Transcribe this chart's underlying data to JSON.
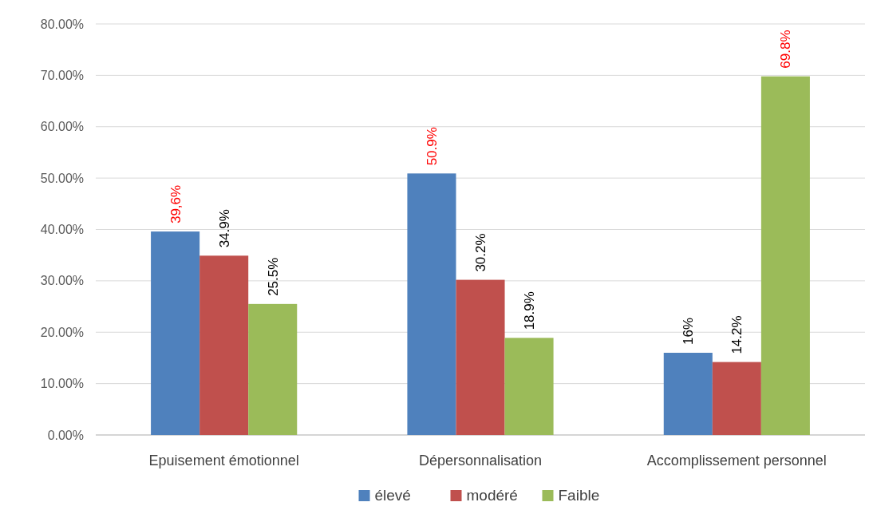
{
  "chart_data": {
    "type": "bar",
    "categories": [
      "Epuisement émotionnel",
      "Dépersonnalisation",
      "Accomplissement personnel"
    ],
    "series": [
      {
        "name": "élevé",
        "color": "#4f81bd",
        "values": [
          39.6,
          50.9,
          16
        ],
        "value_labels": [
          "39,6%",
          "50.9%",
          "16%"
        ]
      },
      {
        "name": "modéré",
        "color": "#c0504d",
        "values": [
          34.9,
          30.2,
          14.2
        ],
        "value_labels": [
          "34.9%",
          "30.2%",
          "14.2%"
        ]
      },
      {
        "name": "Faible",
        "color": "#9bbb59",
        "values": [
          25.5,
          18.9,
          69.8
        ],
        "value_labels": [
          "25.5%",
          "18.9%",
          "69.8%"
        ]
      }
    ],
    "ylim": [
      0,
      80
    ],
    "yticks": [
      {
        "value": 0,
        "label": "0.00%"
      },
      {
        "value": 10,
        "label": "10.00%"
      },
      {
        "value": 20,
        "label": "20.00%"
      },
      {
        "value": 30,
        "label": "30.00%"
      },
      {
        "value": 40,
        "label": "40.00%"
      },
      {
        "value": 50,
        "label": "50.00%"
      },
      {
        "value": 60,
        "label": "60.00%"
      },
      {
        "value": 70,
        "label": "70.00%"
      },
      {
        "value": 80,
        "label": "80.00%"
      }
    ],
    "grid": "y",
    "legend": "bottom"
  }
}
